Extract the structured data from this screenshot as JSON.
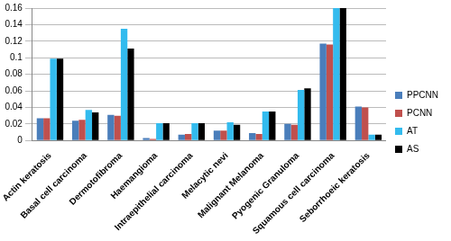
{
  "chart_data": {
    "type": "bar",
    "categories": [
      "Actin keratosis",
      "Basal cell carcinoma",
      "Dermotofibroma",
      "Haemangioma",
      "Intraepithelial carcinoma",
      "Melacytic nevi",
      "Malignant Melanoma",
      "Pyogenic Granuloma",
      "Squamous cell carcinoma",
      "Seborrhoeic keratosis"
    ],
    "series": [
      {
        "name": "PPCNN",
        "color": "#4a7ebb",
        "values": [
          0.027,
          0.024,
          0.031,
          0.003,
          0.007,
          0.012,
          0.009,
          0.02,
          0.117,
          0.041
        ]
      },
      {
        "name": "PCNN",
        "color": "#c0504d",
        "values": [
          0.027,
          0.025,
          0.03,
          0.002,
          0.008,
          0.012,
          0.008,
          0.019,
          0.116,
          0.04
        ]
      },
      {
        "name": "AT",
        "color": "#33bbee",
        "values": [
          0.099,
          0.037,
          0.135,
          0.021,
          0.021,
          0.022,
          0.035,
          0.061,
          0.16,
          0.007
        ]
      },
      {
        "name": "AS",
        "color": "#000000",
        "values": [
          0.099,
          0.034,
          0.111,
          0.021,
          0.021,
          0.019,
          0.035,
          0.063,
          0.16,
          0.007
        ]
      }
    ],
    "ylim": [
      0,
      0.16
    ],
    "yticks": [
      0,
      0.02,
      0.04,
      0.06,
      0.08,
      0.1,
      0.12,
      0.14,
      0.16
    ],
    "grid": true,
    "legend": "right"
  }
}
